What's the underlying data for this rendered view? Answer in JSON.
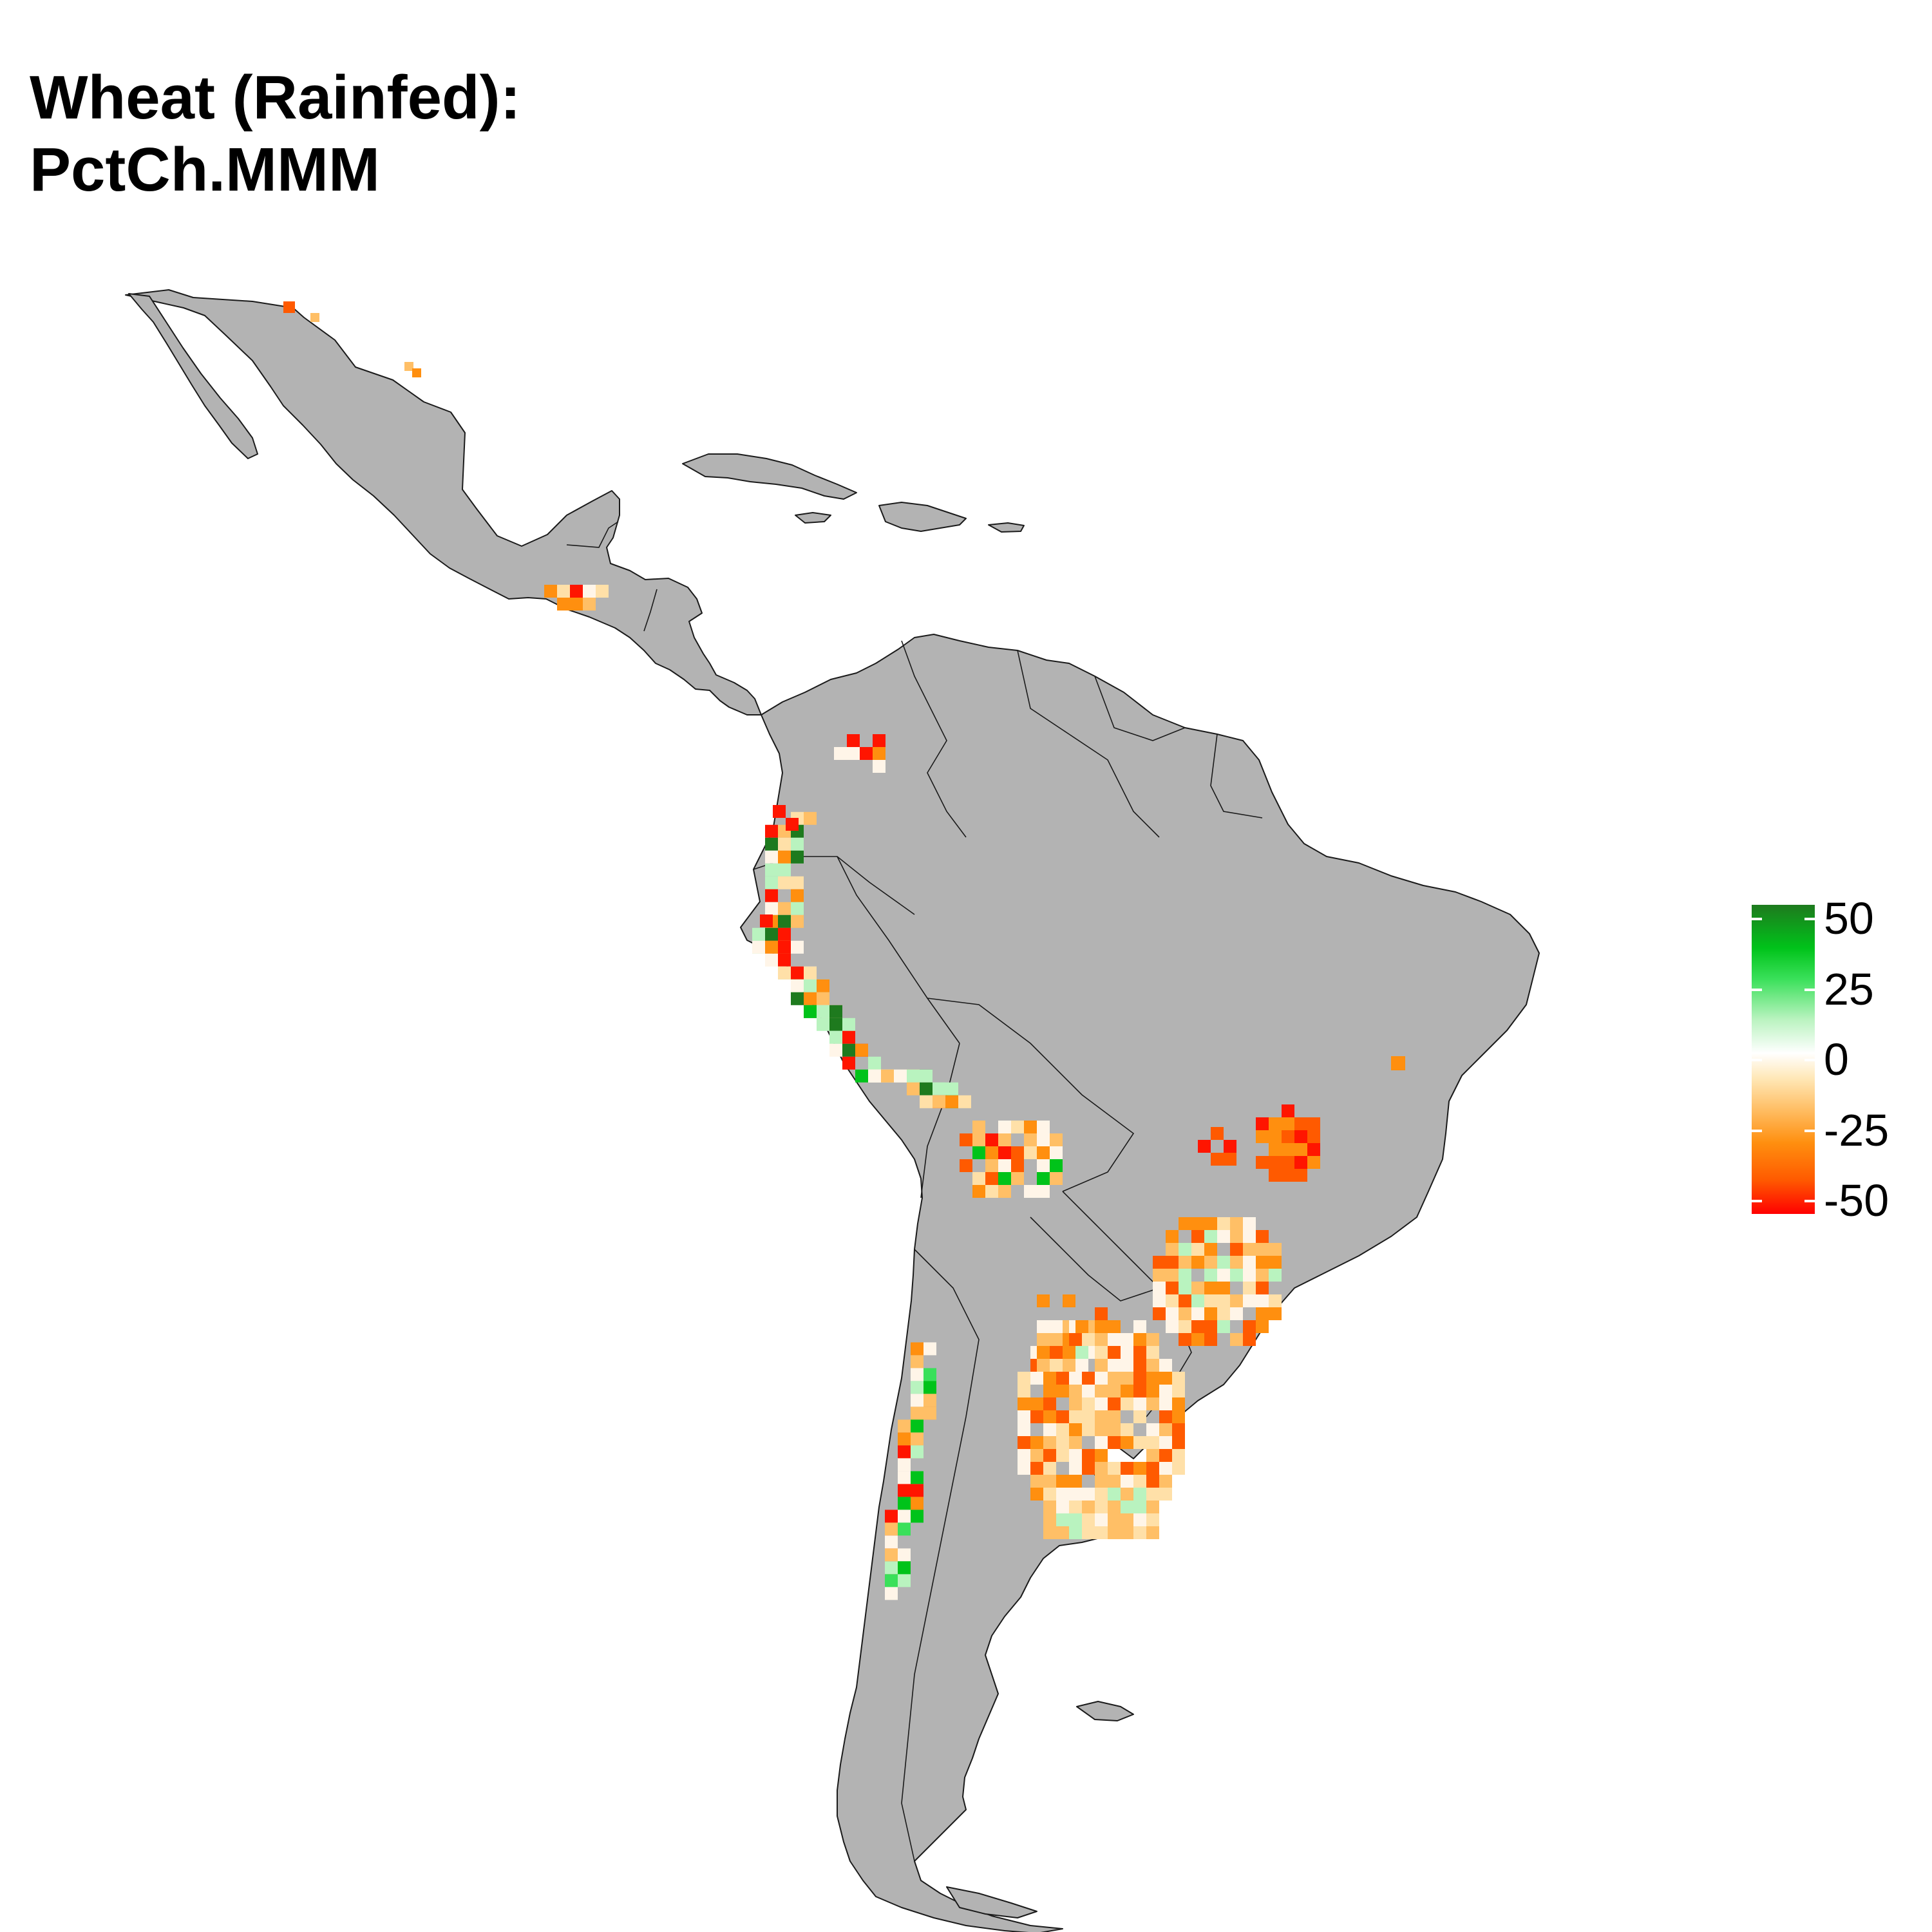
{
  "title": {
    "line1": "Wheat (Rainfed):",
    "line2": "PctCh.MMM"
  },
  "colors": {
    "land": "#b3b3b3",
    "border": "#1a1a1a",
    "scale_high": "#1e7a1e",
    "scale_mid_high": "#00c31a",
    "scale_zero": "#ffffff",
    "scale_mid_low": "#ff8f0f",
    "scale_low": "#ff0000"
  },
  "legend": {
    "ticks": [
      {
        "label": "50",
        "value": 50
      },
      {
        "label": "25",
        "value": 25
      },
      {
        "label": "0",
        "value": 0
      },
      {
        "label": "-25",
        "value": -25
      },
      {
        "label": "-50",
        "value": -50
      }
    ],
    "range": [
      -50,
      50
    ]
  }
}
